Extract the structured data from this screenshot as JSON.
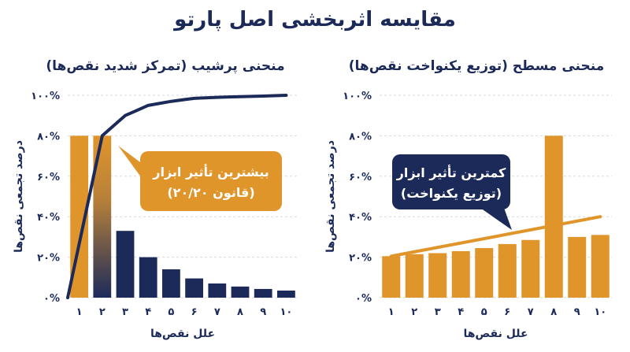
{
  "title": "مقایسه اثربخشی اصل پارتو",
  "chart_data": [
    {
      "type": "bar",
      "title": "منحنی پرشیب (تمرکز شدید نقص‌ها)",
      "xlabel": "علل نقص‌ها",
      "ylabel": "درصد تجمعی نقص‌ها",
      "ylim": [
        0,
        100
      ],
      "yticks": [
        "۰%",
        "۲۰%",
        "۴۰%",
        "۶۰%",
        "۸۰%",
        "۱۰۰%"
      ],
      "categories": [
        "۱",
        "۲",
        "۳",
        "۴",
        "۵",
        "۶",
        "۷",
        "۸",
        "۹",
        "۱۰"
      ],
      "values": [
        80,
        80,
        33,
        20,
        14,
        9.5,
        7,
        5.5,
        4.3,
        3.5
      ],
      "bar_colors": [
        "#e0952b",
        "gradient",
        "#1c2a5a",
        "#1c2a5a",
        "#1c2a5a",
        "#1c2a5a",
        "#1c2a5a",
        "#1c2a5a",
        "#1c2a5a",
        "#1c2a5a"
      ],
      "line": [
        0,
        80,
        90,
        95,
        97,
        98.5,
        99,
        99.3,
        99.6,
        100
      ],
      "line_start": 0,
      "line_color": "#1c2a5a",
      "callout": {
        "lines": [
          "بیشترین تأثیر ابزار",
          "(قانون ۲۰/۲۰)"
        ],
        "color": "#e0952b"
      }
    },
    {
      "type": "bar",
      "title": "منحنی مسطح (توزیع یکنواخت نقص‌ها)",
      "xlabel": "علل نقص‌ها",
      "ylabel": "درصد تجمعی نقص‌ها",
      "ylim": [
        0,
        100
      ],
      "yticks": [
        "۰%",
        "۲۰%",
        "۴۰%",
        "۶۰%",
        "۸۰%",
        "۱۰۰%"
      ],
      "categories": [
        "۱",
        "۲",
        "۳",
        "۴",
        "۵",
        "۶",
        "۷",
        "۸",
        "۹",
        "۱۰"
      ],
      "values": [
        20.5,
        21.5,
        22,
        23,
        24.5,
        26.5,
        28.5,
        80,
        30,
        31
      ],
      "bar_colors": [
        "#e0952b",
        "#e0952b",
        "#e0952b",
        "#e0952b",
        "#e0952b",
        "#e0952b",
        "#e0952b",
        "#e0952b",
        "#e0952b",
        "#e0952b"
      ],
      "line": [
        20.5,
        22.5,
        24.5,
        26.5,
        28.5,
        30.5,
        33,
        35,
        37.5,
        40
      ],
      "line_color": "#e0952b",
      "callout": {
        "lines": [
          "کمترین تأثیر ابزار",
          "(توزیع یکنواخت)"
        ],
        "color": "#1c2a5a"
      }
    }
  ]
}
